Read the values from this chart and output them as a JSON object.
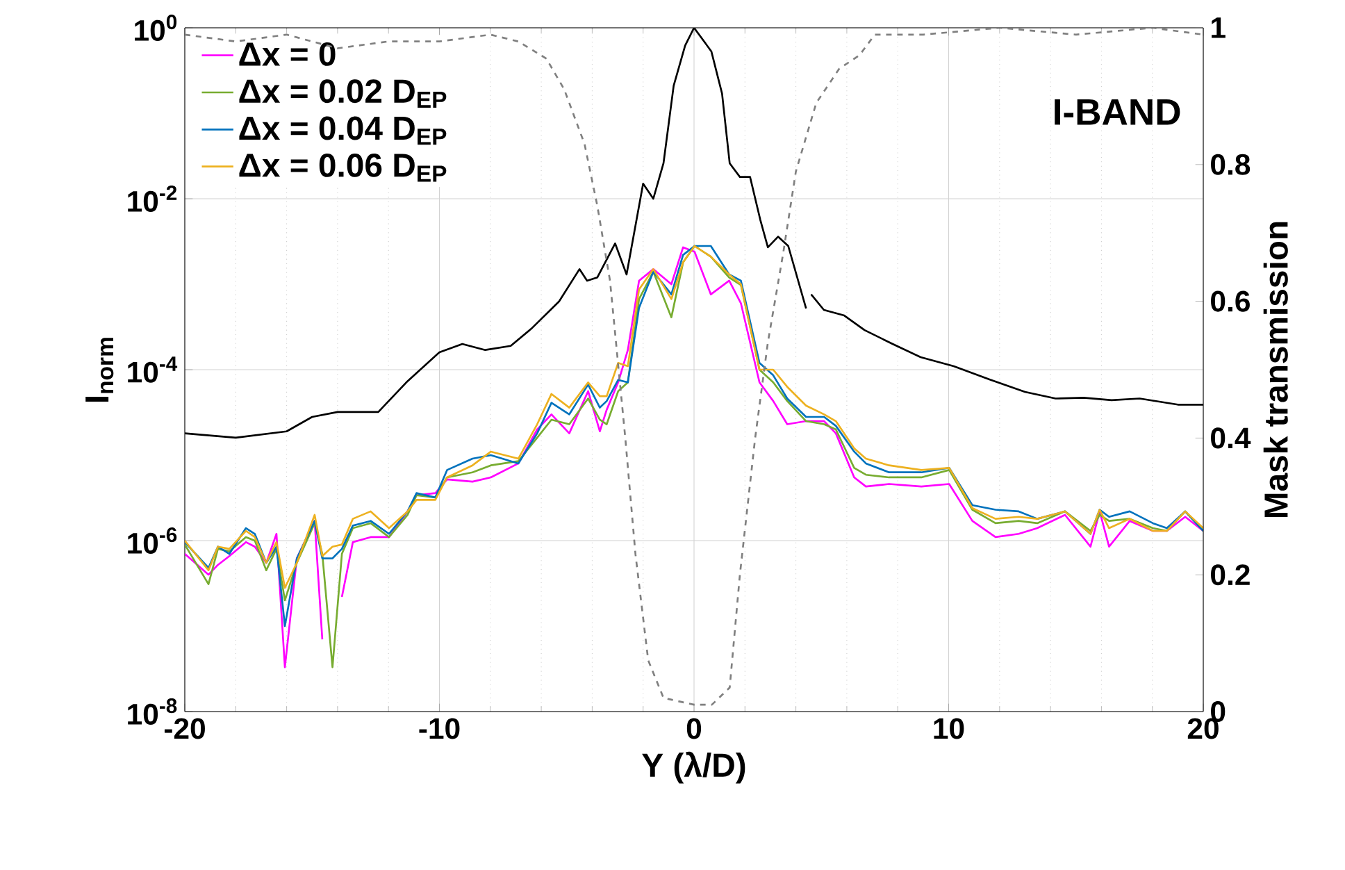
{
  "chart_data": {
    "type": "line",
    "xlabel": "Y (λ/D)",
    "ylabel": "I$_{norm}$",
    "y2label": "Mask transmission",
    "annotations": [
      "I-BAND"
    ],
    "x": [
      -20,
      -19.07,
      -18.7,
      -18.25,
      -17.6,
      -17.25,
      -16.8,
      -16.4,
      -16.07,
      -15.6,
      -14.9,
      -14.6,
      -14.2,
      -13.83,
      -13.4,
      -12.7,
      -11.98,
      -11.25,
      -10.9,
      -10.16,
      -9.7,
      -8.7,
      -7.98,
      -6.9,
      -6.16,
      -5.6,
      -4.9,
      -4.16,
      -3.7,
      -3.43,
      -2.98,
      -2.6,
      -2.16,
      -1.6,
      -0.89,
      -0.43,
      0.02,
      0.66,
      1.38,
      1.84,
      2.57,
      3.11,
      3.66,
      4.4,
      5.11,
      5.57,
      6.29,
      6.75,
      7.66,
      8.93,
      10.02,
      10.93,
      11.84,
      12.75,
      13.48,
      14.57,
      15.57,
      15.93,
      16.3,
      17.11,
      18.02,
      18.57,
      19.29,
      20
    ],
    "series": [
      {
        "name": "Δx = 0",
        "color": "#ff00ff",
        "values": [
          7e-07,
          4e-07,
          5.2e-07,
          6.6e-07,
          9.6e-07,
          8.5e-07,
          5.5e-07,
          1.2e-06,
          3.3e-08,
          6.2e-07,
          1.7e-06,
          7e-08,
          null,
          2.2e-07,
          9.6e-07,
          1.1e-06,
          1.1e-06,
          2.2e-06,
          3.4e-06,
          3.6e-06,
          5.2e-06,
          4.9e-06,
          5.5e-06,
          8e-06,
          2e-05,
          3e-05,
          1.8e-05,
          5.6e-05,
          1.9e-05,
          3.4e-05,
          7.1e-05,
          0.00017,
          0.0011,
          0.0015,
          0.001,
          0.0027,
          0.0024,
          0.00076,
          0.0011,
          0.0006,
          7.1e-05,
          4.3e-05,
          2.3e-05,
          2.5e-05,
          2.5e-05,
          1.8e-05,
          5.5e-06,
          4.3e-06,
          4.6e-06,
          4.3e-06,
          4.6e-06,
          1.7e-06,
          1.1e-06,
          1.2e-06,
          1.4e-06,
          2e-06,
          8.5e-07,
          2.2e-06,
          8.5e-07,
          1.7e-06,
          1.3e-06,
          1.3e-06,
          1.9e-06,
          1.3e-06
        ]
      },
      {
        "name": "Δx = 0.02 D$_{EP}$",
        "color": "#77ac30",
        "values": [
          9e-07,
          3.1e-07,
          8e-07,
          7.5e-07,
          1.1e-06,
          1e-06,
          4.5e-07,
          8e-07,
          2e-07,
          5.5e-07,
          1.6e-06,
          7e-07,
          3.3e-08,
          7e-07,
          1.4e-06,
          1.6e-06,
          1.1e-06,
          2e-06,
          3.4e-06,
          3.2e-06,
          5.5e-06,
          6.3e-06,
          7.6e-06,
          8.5e-06,
          1.6e-05,
          2.6e-05,
          2.3e-05,
          4.6e-05,
          2.6e-05,
          2.3e-05,
          5.6e-05,
          7.1e-05,
          0.00067,
          0.0014,
          0.00041,
          0.0018,
          0.0028,
          0.0021,
          0.0012,
          0.00098,
          0.0001,
          7.1e-05,
          4.3e-05,
          2.5e-05,
          2.3e-05,
          2e-05,
          7.1e-06,
          5.9e-06,
          5.5e-06,
          5.5e-06,
          6.7e-06,
          2.3e-06,
          1.6e-06,
          1.7e-06,
          1.6e-06,
          2.2e-06,
          1.3e-06,
          2e-06,
          1.7e-06,
          1.8e-06,
          1.4e-06,
          1.3e-06,
          2.2e-06,
          1.3e-06
        ]
      },
      {
        "name": "Δx = 0.04 D$_{EP}$",
        "color": "#0072bd",
        "values": [
          9.6e-07,
          4.8e-07,
          8.5e-07,
          7e-07,
          1.4e-06,
          1.2e-06,
          5.5e-07,
          8.5e-07,
          1e-07,
          6.2e-07,
          1.7e-06,
          6.2e-07,
          6.2e-07,
          8e-07,
          1.5e-06,
          1.7e-06,
          1.2e-06,
          2.2e-06,
          3.6e-06,
          3.2e-06,
          6.7e-06,
          9.1e-06,
          1e-05,
          8e-06,
          1.8e-05,
          4.1e-05,
          3e-05,
          6.7e-05,
          3.6e-05,
          4.3e-05,
          7.6e-05,
          7.1e-05,
          0.00053,
          0.0014,
          0.00076,
          0.0022,
          0.0028,
          0.0028,
          0.0013,
          0.0011,
          0.00012,
          8.6e-05,
          4.6e-05,
          2.8e-05,
          2.8e-05,
          2.2e-05,
          1.1e-05,
          8e-06,
          6.3e-06,
          6.3e-06,
          7.1e-06,
          2.6e-06,
          2.3e-06,
          2.2e-06,
          1.8e-06,
          2.2e-06,
          1.2e-06,
          2.3e-06,
          1.9e-06,
          2.2e-06,
          1.6e-06,
          1.4e-06,
          2.2e-06,
          1.3e-06
        ]
      },
      {
        "name": "Δx = 0.06 D$_{EP}$",
        "color": "#edb120",
        "values": [
          1e-06,
          4.5e-07,
          8.5e-07,
          8e-07,
          1.3e-06,
          1.1e-06,
          5.5e-07,
          9.6e-07,
          2.8e-07,
          5.5e-07,
          2e-06,
          6.6e-07,
          8.5e-07,
          9e-07,
          1.8e-06,
          2.2e-06,
          1.4e-06,
          2.2e-06,
          3e-06,
          3e-06,
          5.5e-06,
          7.6e-06,
          1.1e-05,
          9.1e-06,
          2.3e-05,
          5.2e-05,
          3.6e-05,
          7.1e-05,
          4.9e-05,
          4.9e-05,
          0.00012,
          0.00011,
          0.00087,
          0.0015,
          0.00067,
          0.0018,
          0.0028,
          0.0021,
          0.0013,
          0.001,
          0.0001,
          0.0001,
          6.3e-05,
          3.8e-05,
          3e-05,
          2.5e-05,
          1.2e-05,
          9.1e-06,
          7.6e-06,
          6.7e-06,
          7.1e-06,
          2.4e-06,
          1.8e-06,
          1.9e-06,
          1.8e-06,
          2.2e-06,
          1.2e-06,
          2.3e-06,
          1.4e-06,
          1.8e-06,
          1.3e-06,
          1.3e-06,
          2.2e-06,
          1.4e-06
        ]
      },
      {
        "color": "#000000",
        "x": [
          -20,
          -18,
          -16,
          -15,
          -14,
          -12.4,
          -11.3,
          -10,
          -9.1,
          -8.2,
          -7.2,
          -6.4,
          -5.3,
          -4.5,
          -4.2,
          -3.8,
          -3.1,
          -2.65,
          -2.0,
          -1.6,
          -1.2,
          -0.8,
          -0.35,
          0,
          0.68,
          1.1,
          1.4,
          1.8,
          2.2,
          2.6,
          2.9,
          3.3,
          3.7,
          4.4,
          4.45,
          4.6,
          5.1,
          5.9,
          6.7,
          7.8,
          8.9,
          10.2,
          11.6,
          13,
          14.2,
          15.3,
          16.4,
          17.5,
          19,
          20
        ],
        "values": [
          1.8e-05,
          1.6e-05,
          1.9e-05,
          2.8e-05,
          3.2e-05,
          3.2e-05,
          7.1e-05,
          0.00016,
          0.0002,
          0.00017,
          0.00019,
          0.0003,
          0.00063,
          0.0015,
          0.0011,
          0.0012,
          0.003,
          0.0013,
          0.015,
          0.01,
          0.026,
          0.21,
          0.62,
          1,
          0.53,
          0.17,
          0.026,
          0.018,
          0.018,
          0.0057,
          0.0027,
          0.0036,
          0.0028,
          0.00052,
          null,
          0.00076,
          0.0005,
          0.00043,
          0.00029,
          0.0002,
          0.00014,
          0.00011,
          7.7e-05,
          5.5e-05,
          4.6e-05,
          4.7e-05,
          4.4e-05,
          4.6e-05,
          3.9e-05,
          3.9e-05
        ]
      },
      {
        "color": "#808080",
        "axis": "y2",
        "line_style": "dashed",
        "x": [
          -20,
          -18,
          -16,
          -14,
          -12,
          -10,
          -8,
          -6.9,
          -5.8,
          -5.1,
          -4.3,
          -3.8,
          -3.3,
          -2.7,
          -2.3,
          -1.8,
          -1.2,
          0,
          0.7,
          1.4,
          1.8,
          2.4,
          2.9,
          3.5,
          4.0,
          4.8,
          5.7,
          6.5,
          7.1,
          9,
          12,
          15,
          18,
          20
        ],
        "values": [
          0.99,
          0.98,
          0.99,
          0.97,
          0.98,
          0.98,
          0.99,
          0.98,
          0.955,
          0.91,
          0.83,
          0.74,
          0.63,
          0.4,
          0.23,
          0.075,
          0.02,
          0.01,
          0.01,
          0.035,
          0.2,
          0.4,
          0.54,
          0.67,
          0.79,
          0.89,
          0.94,
          0.96,
          0.99,
          0.99,
          1.0,
          0.99,
          1.0,
          0.99
        ]
      }
    ],
    "xlim": [
      -20,
      20
    ],
    "xticks": [
      -20,
      -10,
      0,
      10,
      20
    ],
    "log": "y",
    "ylim": [
      1e-08,
      1
    ],
    "yticks": [
      {
        "value": 1e-08,
        "label": "10$^{-8}$"
      },
      {
        "value": 1e-06,
        "label": "10$^{-6}$"
      },
      {
        "value": 0.0001,
        "label": "10$^{-4}$"
      },
      {
        "value": 0.01,
        "label": "10$^{-2}$"
      },
      {
        "value": 1,
        "label": "10$^{0}$"
      }
    ],
    "y2lim": [
      0,
      1
    ],
    "y2ticks": [
      0,
      0.2,
      0.4,
      0.6,
      0.8,
      1
    ],
    "grid": true,
    "legend": "top left",
    "line_style": "solid"
  }
}
